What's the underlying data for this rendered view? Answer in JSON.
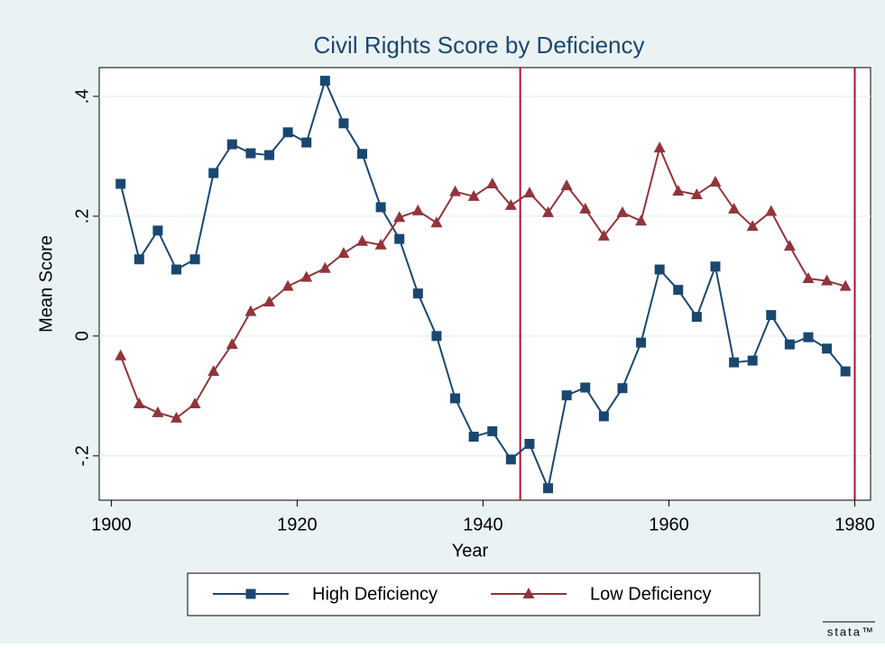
{
  "chart_data": {
    "type": "line",
    "title": "Civil Rights Score by Deficiency",
    "xlabel": "Year",
    "ylabel": "Mean Score",
    "x": [
      1901,
      1903,
      1905,
      1907,
      1909,
      1911,
      1913,
      1915,
      1917,
      1919,
      1921,
      1923,
      1925,
      1927,
      1929,
      1931,
      1933,
      1935,
      1937,
      1939,
      1941,
      1943,
      1945,
      1947,
      1949,
      1951,
      1953,
      1955,
      1957,
      1959,
      1961,
      1963,
      1965,
      1967,
      1969,
      1971,
      1973,
      1975,
      1977,
      1979
    ],
    "series": [
      {
        "name": "High Deficiency",
        "color": "#1a476f",
        "marker": "square",
        "values": [
          0.254,
          0.128,
          0.176,
          0.111,
          0.128,
          0.272,
          0.32,
          0.305,
          0.302,
          0.34,
          0.323,
          0.426,
          0.355,
          0.304,
          0.215,
          0.162,
          0.071,
          0.0,
          -0.104,
          -0.168,
          -0.159,
          -0.206,
          -0.18,
          -0.254,
          -0.099,
          -0.086,
          -0.134,
          -0.087,
          -0.011,
          0.111,
          0.077,
          0.032,
          0.116,
          -0.044,
          -0.041,
          0.035,
          -0.014,
          -0.002,
          -0.021,
          -0.059
        ]
      },
      {
        "name": "Low Deficiency",
        "color": "#90353b",
        "marker": "triangle",
        "values": [
          -0.033,
          -0.113,
          -0.128,
          -0.137,
          -0.113,
          -0.059,
          -0.014,
          0.041,
          0.057,
          0.083,
          0.098,
          0.113,
          0.138,
          0.158,
          0.152,
          0.198,
          0.209,
          0.189,
          0.241,
          0.233,
          0.254,
          0.218,
          0.239,
          0.206,
          0.251,
          0.212,
          0.167,
          0.206,
          0.192,
          0.314,
          0.242,
          0.236,
          0.257,
          0.212,
          0.183,
          0.208,
          0.15,
          0.096,
          0.092,
          0.083
        ]
      }
    ],
    "xlim": [
      1898.7,
      1981.7
    ],
    "ylim": [
      -0.274,
      0.448
    ],
    "xticks": [
      1900,
      1920,
      1940,
      1960,
      1980
    ],
    "yticks": [
      {
        "value": -0.2,
        "label": "-.2"
      },
      0,
      {
        "value": 0.2,
        "label": ".2"
      },
      {
        "value": 0.4,
        "label": ".4"
      }
    ],
    "grid": true,
    "xlines": [
      1944,
      1980
    ],
    "xline_color": "#b01030",
    "legend": "bottom",
    "logo": "stata™"
  }
}
